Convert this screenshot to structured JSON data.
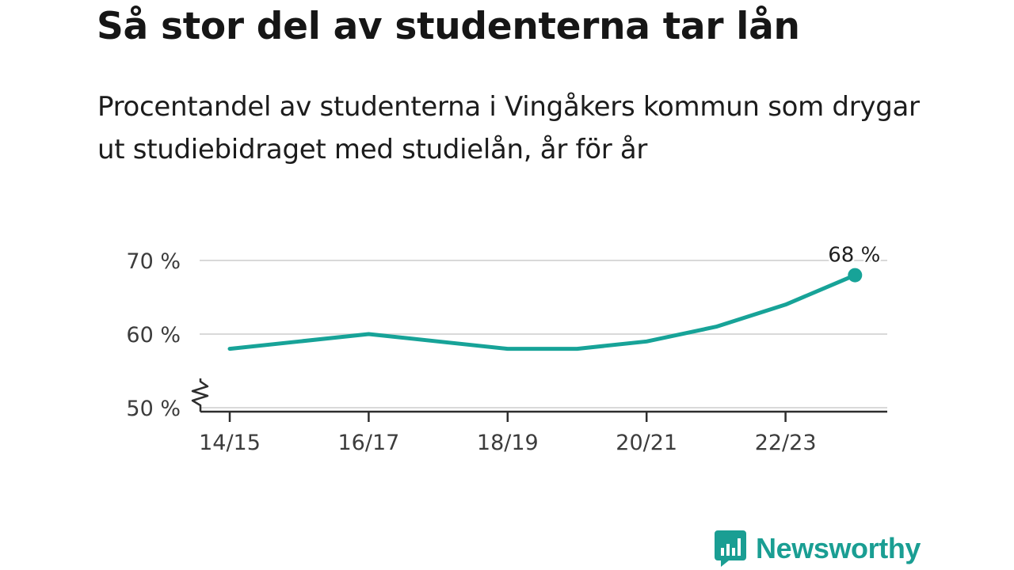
{
  "title": "Så stor del av studenterna tar lån",
  "subtitle": "Procentandel av studenterna i Vingåkers kommun som drygar ut studiebidraget med studielån, år för år",
  "brand": "Newsworthy",
  "colors": {
    "line": "#17a398",
    "grid": "#d9d9d9",
    "axis": "#2e2e2e",
    "brand": "#1a9e93"
  },
  "chart_data": {
    "type": "line",
    "x": [
      "14/15",
      "15/16",
      "16/17",
      "17/18",
      "18/19",
      "19/20",
      "20/21",
      "21/22",
      "22/23",
      "23/24"
    ],
    "xticks": [
      "14/15",
      "16/17",
      "18/19",
      "20/21",
      "22/23"
    ],
    "yticks": [
      "50 %",
      "60 %",
      "70 %"
    ],
    "ytick_values": [
      50,
      60,
      70
    ],
    "series": [
      {
        "values": [
          58,
          59,
          60,
          59,
          58,
          58,
          59,
          61,
          64,
          68
        ]
      }
    ],
    "ylim": [
      50,
      70
    ],
    "last_value_label": "68 %",
    "grid": true,
    "axis_break": true
  }
}
